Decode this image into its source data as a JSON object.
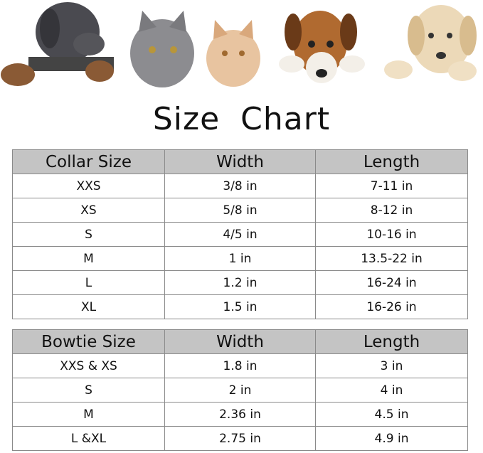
{
  "title": "Size Chart",
  "illustration": "dogs-and-cats-peeking-over-edge",
  "collar_table": {
    "headers": [
      "Collar Size",
      "Width",
      "Length"
    ],
    "rows": [
      [
        "XXS",
        "3/8 in",
        "7-11 in"
      ],
      [
        "XS",
        "5/8 in",
        "8-12 in"
      ],
      [
        "S",
        "4/5 in",
        "10-16 in"
      ],
      [
        "M",
        "1 in",
        "13.5-22 in"
      ],
      [
        "L",
        "1.2 in",
        "16-24 in"
      ],
      [
        "XL",
        "1.5 in",
        "16-26 in"
      ]
    ]
  },
  "bowtie_table": {
    "headers": [
      "Bowtie Size",
      "Width",
      "Length"
    ],
    "rows": [
      [
        "XXS & XS",
        "1.8 in",
        "3 in"
      ],
      [
        "S",
        "2 in",
        "4 in"
      ],
      [
        "M",
        "2.36 in",
        "4.5 in"
      ],
      [
        "L &XL",
        "2.75 in",
        "4.9 in"
      ]
    ]
  },
  "colors": {
    "header_bg": "#c4c4c4",
    "border": "#8a8a8a"
  }
}
